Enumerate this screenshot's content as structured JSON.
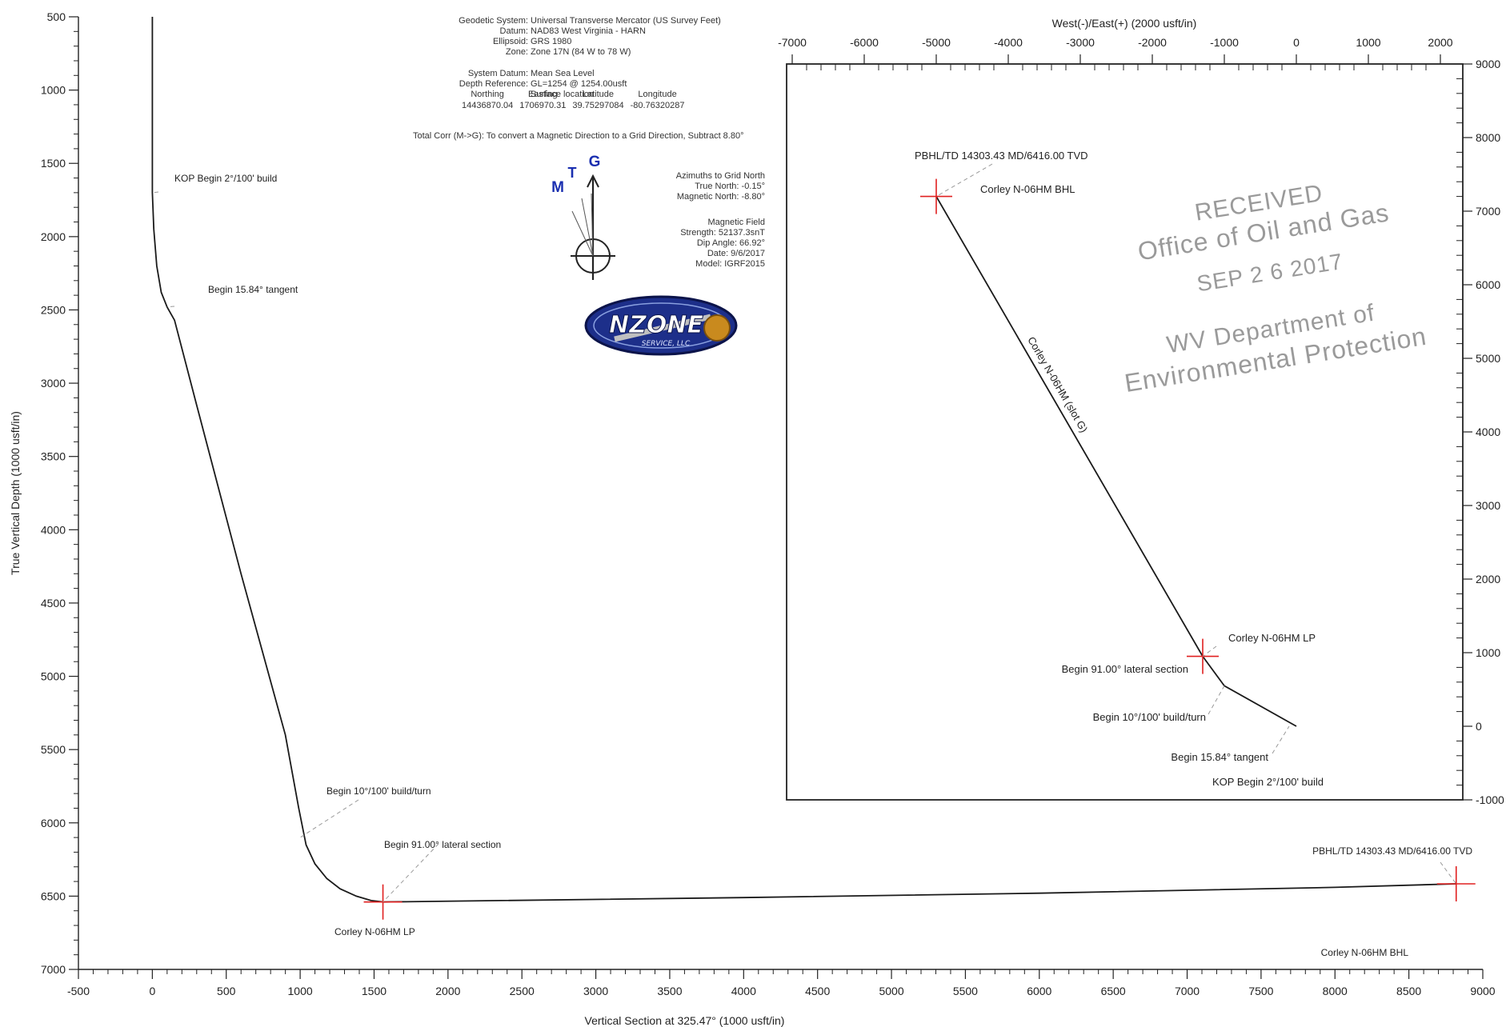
{
  "header": {
    "geodetic": [
      {
        "label": "Geodetic System:",
        "value": "Universal Transverse Mercator (US Survey Feet)"
      },
      {
        "label": "Datum:",
        "value": "NAD83 West Virginia - HARN"
      },
      {
        "label": "Ellipsoid:",
        "value": "GRS 1980"
      },
      {
        "label": "Zone:",
        "value": "Zone 17N (84 W to 78 W)"
      }
    ],
    "system": [
      {
        "label": "System Datum:",
        "value": "Mean Sea Level"
      },
      {
        "label": "Depth Reference:",
        "value": "GL=1254 @ 1254.00usft"
      },
      {
        "label": "",
        "value": "Surface location"
      }
    ],
    "location": {
      "headers": [
        "Northing",
        "Easting",
        "Latitude",
        "Longitude"
      ],
      "values": [
        "14436870.04",
        "1706970.31",
        "39.75297084",
        "-80.76320287"
      ]
    },
    "total_corr": "Total Corr (M->G):   To convert a Magnetic Direction to a Grid Direction, Subtract 8.80°",
    "azimuths": {
      "title": "Azimuths to Grid North",
      "true_north": "True North: -0.15°",
      "magnetic_north": "Magnetic North: -8.80°"
    },
    "magnetic_field": {
      "title": "Magnetic Field",
      "strength": "Strength: 52137.3snT",
      "dip_angle": "Dip Angle: 66.92°",
      "date": "Date: 9/6/2017",
      "model": "Model: IGRF2015"
    },
    "north_arrows": {
      "m": "M",
      "t": "T",
      "g": "G"
    },
    "logo_text": "NZONE",
    "logo_sub": "SERVICE, LLC"
  },
  "stamp": {
    "line1": "RECEIVED",
    "line2": "Office of Oil and Gas",
    "line3": "SEP 2 6 2017",
    "line4": "WV Department of",
    "line5": "Environmental Protection"
  },
  "colors": {
    "trajectory": "#1a1a1a",
    "marker": "#e02020",
    "stamp": "#9a9a9a",
    "north": "#1a2fb0"
  },
  "chart_data": [
    {
      "type": "line",
      "name": "vertical-section",
      "xlabel": "Vertical Section at 325.47° (1000 usft/in)",
      "ylabel": "True Vertical Depth (1000 usft/in)",
      "xlim": [
        -500,
        9000
      ],
      "ylim": [
        7000,
        500
      ],
      "xticks": [
        -500,
        0,
        500,
        1000,
        1500,
        2000,
        2500,
        3000,
        3500,
        4000,
        4500,
        5000,
        5500,
        6000,
        6500,
        7000,
        7500,
        8000,
        8500,
        9000
      ],
      "yticks": [
        500,
        1000,
        1500,
        2000,
        2500,
        3000,
        3500,
        4000,
        4500,
        5000,
        5500,
        6000,
        6500,
        7000
      ],
      "series": [
        {
          "x": [
            0,
            0,
            10,
            30,
            60,
            100,
            150,
            300,
            600,
            900,
            990,
            1040,
            1100,
            1180,
            1270,
            1380,
            1480,
            1560,
            4000,
            6000,
            8000,
            8820
          ],
          "y": [
            500,
            1700,
            1950,
            2200,
            2380,
            2480,
            2570,
            3150,
            4300,
            5400,
            5900,
            6150,
            6280,
            6380,
            6450,
            6500,
            6530,
            6540,
            6510,
            6480,
            6440,
            6416
          ]
        }
      ],
      "markers": [
        {
          "x": 1560,
          "y": 6540
        },
        {
          "x": 8820,
          "y": 6416
        }
      ],
      "annotations": [
        {
          "text": "KOP Begin 2°/100' build",
          "x": 0,
          "y": 1700
        },
        {
          "text": "Begin 15.84° tangent",
          "x": 100,
          "y": 2480
        },
        {
          "text": "Begin 10°/100' build/turn",
          "x": 1000,
          "y": 6100
        },
        {
          "text": "Begin 91.00° lateral section",
          "x": 1560,
          "y": 6540
        },
        {
          "text": "Corley N-06HM LP",
          "x": 1560,
          "y": 6540
        },
        {
          "text": "PBHL/TD 14303.43 MD/6416.00 TVD",
          "x": 8820,
          "y": 6416
        },
        {
          "text": "Corley N-06HM BHL",
          "x": 8820,
          "y": 6416
        }
      ]
    },
    {
      "type": "line",
      "name": "plan-view",
      "xlabel": "West(-)/East(+) (2000 usft/in)",
      "ylabel": "",
      "xlim": [
        -7000,
        2000
      ],
      "ylim": [
        -1000,
        9000
      ],
      "xticks": [
        -7000,
        -6000,
        -5000,
        -4000,
        -3000,
        -2000,
        -1000,
        0,
        1000,
        2000
      ],
      "yticks": [
        -1000,
        0,
        1000,
        2000,
        3000,
        4000,
        5000,
        6000,
        7000,
        8000,
        9000
      ],
      "series": [
        {
          "name": "Corley N-06HM (slot G)",
          "x": [
            0,
            -1000,
            -1300,
            -5000
          ],
          "y": [
            0,
            550,
            950,
            7200
          ]
        }
      ],
      "markers": [
        {
          "x": -1300,
          "y": 950
        },
        {
          "x": -5000,
          "y": 7200
        }
      ],
      "annotations": [
        {
          "text": "PBHL/TD 14303.43 MD/6416.00 TVD",
          "x": -5000,
          "y": 7200
        },
        {
          "text": "Corley N-06HM BHL",
          "x": -5000,
          "y": 7200
        },
        {
          "text": "Corley N-06HM LP",
          "x": -1300,
          "y": 950
        },
        {
          "text": "Begin 91.00° lateral section",
          "x": -1300,
          "y": 950
        },
        {
          "text": "Begin 10°/100' build/turn",
          "x": -1000,
          "y": 550
        },
        {
          "text": "Begin 15.84° tangent",
          "x": -100,
          "y": 0
        },
        {
          "text": "KOP Begin 2°/100' build",
          "x": 0,
          "y": 0
        }
      ]
    }
  ]
}
